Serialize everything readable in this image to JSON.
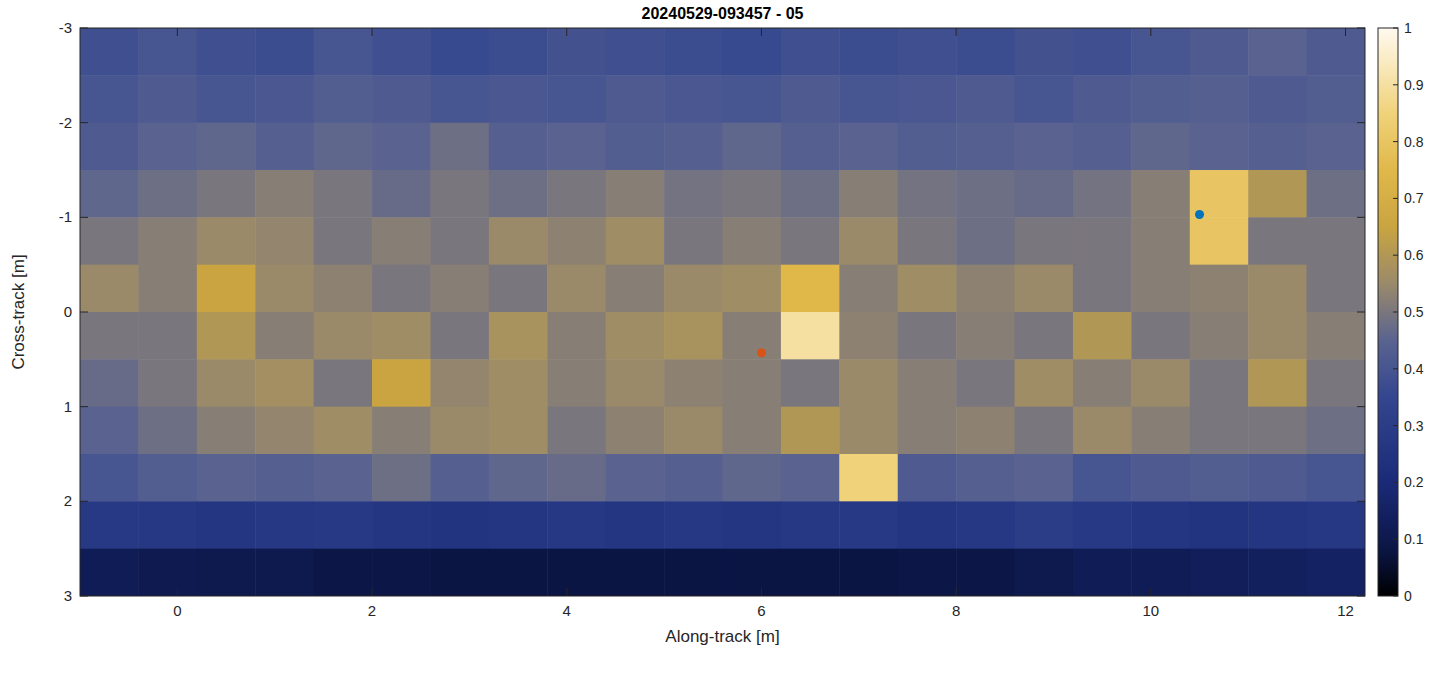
{
  "chart_data": {
    "type": "heatmap",
    "title": "20240529-093457 - 05",
    "x_label": "Along-track [m]",
    "y_label": "Cross-track [m]",
    "xlim": [
      -1.0,
      12.2
    ],
    "ylim": [
      -3,
      3
    ],
    "xticks": [
      0,
      2,
      4,
      6,
      8,
      10,
      12
    ],
    "yticks": [
      -3,
      -2,
      -1,
      0,
      1,
      2,
      3
    ],
    "x": [
      -0.7,
      -0.1,
      0.5,
      1.1,
      1.7,
      2.3,
      2.9,
      3.5,
      4.1,
      4.7,
      5.3,
      5.9,
      6.5,
      7.1,
      7.7,
      8.3,
      8.9,
      9.5,
      10.1,
      10.7,
      11.3,
      11.9
    ],
    "y": [
      -2.75,
      -2.25,
      -1.75,
      -1.25,
      -0.75,
      -0.25,
      0.25,
      0.75,
      1.25,
      1.75,
      2.25,
      2.75
    ],
    "values": [
      [
        0.38,
        0.4,
        0.38,
        0.37,
        0.4,
        0.38,
        0.36,
        0.37,
        0.39,
        0.38,
        0.37,
        0.36,
        0.38,
        0.37,
        0.38,
        0.37,
        0.39,
        0.38,
        0.4,
        0.42,
        0.45,
        0.42
      ],
      [
        0.4,
        0.42,
        0.4,
        0.41,
        0.43,
        0.42,
        0.4,
        0.41,
        0.4,
        0.42,
        0.41,
        0.4,
        0.42,
        0.4,
        0.41,
        0.42,
        0.4,
        0.42,
        0.43,
        0.44,
        0.42,
        0.43
      ],
      [
        0.42,
        0.45,
        0.46,
        0.44,
        0.46,
        0.45,
        0.48,
        0.44,
        0.45,
        0.43,
        0.44,
        0.46,
        0.44,
        0.45,
        0.43,
        0.44,
        0.45,
        0.44,
        0.46,
        0.45,
        0.44,
        0.45
      ],
      [
        0.46,
        0.48,
        0.5,
        0.52,
        0.5,
        0.47,
        0.5,
        0.48,
        0.5,
        0.52,
        0.49,
        0.5,
        0.48,
        0.52,
        0.49,
        0.48,
        0.47,
        0.49,
        0.52,
        0.8,
        0.6,
        0.48
      ],
      [
        0.5,
        0.52,
        0.55,
        0.54,
        0.5,
        0.52,
        0.5,
        0.55,
        0.53,
        0.56,
        0.5,
        0.52,
        0.5,
        0.55,
        0.5,
        0.48,
        0.5,
        0.5,
        0.52,
        0.8,
        0.5,
        0.5
      ],
      [
        0.55,
        0.52,
        0.65,
        0.55,
        0.53,
        0.5,
        0.52,
        0.5,
        0.55,
        0.52,
        0.55,
        0.56,
        0.75,
        0.52,
        0.56,
        0.53,
        0.55,
        0.5,
        0.52,
        0.53,
        0.55,
        0.5
      ],
      [
        0.5,
        0.5,
        0.6,
        0.52,
        0.55,
        0.56,
        0.5,
        0.58,
        0.52,
        0.56,
        0.58,
        0.52,
        0.9,
        0.53,
        0.5,
        0.52,
        0.5,
        0.6,
        0.5,
        0.52,
        0.55,
        0.52
      ],
      [
        0.47,
        0.5,
        0.55,
        0.57,
        0.5,
        0.65,
        0.54,
        0.56,
        0.52,
        0.55,
        0.53,
        0.52,
        0.5,
        0.55,
        0.52,
        0.5,
        0.56,
        0.52,
        0.55,
        0.5,
        0.6,
        0.5
      ],
      [
        0.45,
        0.48,
        0.52,
        0.54,
        0.56,
        0.52,
        0.55,
        0.56,
        0.5,
        0.53,
        0.55,
        0.52,
        0.6,
        0.55,
        0.52,
        0.53,
        0.5,
        0.55,
        0.52,
        0.5,
        0.5,
        0.48
      ],
      [
        0.4,
        0.43,
        0.45,
        0.44,
        0.45,
        0.48,
        0.44,
        0.46,
        0.47,
        0.45,
        0.44,
        0.46,
        0.45,
        0.85,
        0.42,
        0.44,
        0.45,
        0.4,
        0.42,
        0.43,
        0.42,
        0.4
      ],
      [
        0.28,
        0.27,
        0.26,
        0.27,
        0.28,
        0.26,
        0.25,
        0.26,
        0.27,
        0.26,
        0.27,
        0.26,
        0.27,
        0.28,
        0.26,
        0.27,
        0.3,
        0.28,
        0.26,
        0.25,
        0.26,
        0.27
      ],
      [
        0.12,
        0.11,
        0.1,
        0.1,
        0.09,
        0.09,
        0.08,
        0.08,
        0.08,
        0.08,
        0.08,
        0.08,
        0.08,
        0.08,
        0.09,
        0.09,
        0.1,
        0.12,
        0.12,
        0.13,
        0.14,
        0.15
      ]
    ],
    "colorbar": {
      "lim": [
        0,
        1
      ],
      "ticks": [
        0,
        0.1,
        0.2,
        0.3,
        0.4,
        0.5,
        0.6,
        0.7,
        0.8,
        0.9,
        1
      ]
    },
    "series": [
      {
        "type": "scatter",
        "marker": "dot",
        "color": "#d95319",
        "x": [
          6.0
        ],
        "values": [
          0.43
        ]
      },
      {
        "type": "scatter",
        "marker": "dot",
        "color": "#0072bd",
        "x": [
          10.5
        ],
        "values": [
          -1.03
        ]
      }
    ]
  }
}
